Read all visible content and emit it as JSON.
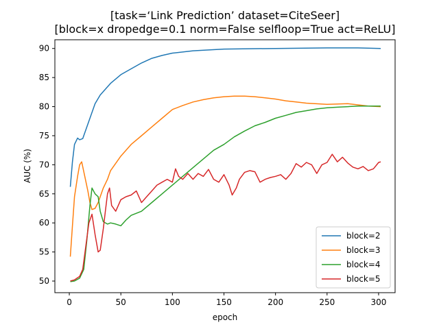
{
  "chart_data": {
    "type": "line",
    "title_line1": "[task=‘Link Prediction’ dataset=CiteSeer]",
    "title_line2": "[block=x dropedge=0.1 norm=False selfloop=True act=ReLU]",
    "xlabel": "epoch",
    "ylabel": "AUC (%)",
    "xlim": [
      -14,
      316
    ],
    "ylim": [
      48,
      91.5
    ],
    "xticks": [
      0,
      50,
      100,
      150,
      200,
      250,
      300
    ],
    "yticks": [
      50,
      55,
      60,
      65,
      70,
      75,
      80,
      85,
      90
    ],
    "grid": false,
    "legend_position": "lower-right",
    "series": [
      {
        "name": "block=2",
        "color": "#1f77b4",
        "points": [
          [
            1,
            66.2
          ],
          [
            3,
            70.5
          ],
          [
            5,
            73.5
          ],
          [
            8,
            74.6
          ],
          [
            10,
            74.3
          ],
          [
            13,
            74.5
          ],
          [
            17,
            76.5
          ],
          [
            20,
            78
          ],
          [
            25,
            80.5
          ],
          [
            30,
            82
          ],
          [
            40,
            84
          ],
          [
            50,
            85.5
          ],
          [
            60,
            86.5
          ],
          [
            70,
            87.5
          ],
          [
            80,
            88.3
          ],
          [
            90,
            88.8
          ],
          [
            100,
            89.2
          ],
          [
            120,
            89.6
          ],
          [
            150,
            89.9
          ],
          [
            200,
            90
          ],
          [
            250,
            90.1
          ],
          [
            280,
            90.1
          ],
          [
            302,
            90
          ]
        ]
      },
      {
        "name": "block=3",
        "color": "#ff7f0e",
        "points": [
          [
            1,
            54.2
          ],
          [
            3,
            59.5
          ],
          [
            5,
            64.5
          ],
          [
            8,
            68
          ],
          [
            10,
            70
          ],
          [
            12,
            70.5
          ],
          [
            15,
            68
          ],
          [
            18,
            65.5
          ],
          [
            20,
            63.5
          ],
          [
            22,
            62.3
          ],
          [
            25,
            62.5
          ],
          [
            28,
            63.5
          ],
          [
            30,
            64.5
          ],
          [
            33,
            66
          ],
          [
            37,
            67.5
          ],
          [
            40,
            69
          ],
          [
            50,
            71.5
          ],
          [
            60,
            73.5
          ],
          [
            70,
            75
          ],
          [
            80,
            76.5
          ],
          [
            90,
            78
          ],
          [
            100,
            79.5
          ],
          [
            110,
            80.2
          ],
          [
            120,
            80.8
          ],
          [
            130,
            81.2
          ],
          [
            140,
            81.5
          ],
          [
            150,
            81.7
          ],
          [
            160,
            81.8
          ],
          [
            170,
            81.8
          ],
          [
            180,
            81.7
          ],
          [
            190,
            81.5
          ],
          [
            200,
            81.3
          ],
          [
            210,
            81
          ],
          [
            220,
            80.8
          ],
          [
            230,
            80.6
          ],
          [
            250,
            80.4
          ],
          [
            270,
            80.5
          ],
          [
            290,
            80.1
          ],
          [
            302,
            80
          ]
        ]
      },
      {
        "name": "block=4",
        "color": "#2ca02c",
        "points": [
          [
            1,
            49.9
          ],
          [
            5,
            50
          ],
          [
            10,
            50.5
          ],
          [
            14,
            52
          ],
          [
            17,
            57
          ],
          [
            20,
            63
          ],
          [
            22,
            66
          ],
          [
            25,
            65
          ],
          [
            28,
            64.5
          ],
          [
            30,
            62
          ],
          [
            33,
            60.2
          ],
          [
            37,
            59.8
          ],
          [
            40,
            60
          ],
          [
            45,
            59.8
          ],
          [
            50,
            59.5
          ],
          [
            55,
            60.5
          ],
          [
            60,
            61.3
          ],
          [
            70,
            62
          ],
          [
            80,
            63.5
          ],
          [
            90,
            65
          ],
          [
            100,
            66.5
          ],
          [
            110,
            68
          ],
          [
            120,
            69.5
          ],
          [
            130,
            71
          ],
          [
            140,
            72.5
          ],
          [
            150,
            73.5
          ],
          [
            160,
            74.8
          ],
          [
            170,
            75.8
          ],
          [
            180,
            76.7
          ],
          [
            190,
            77.3
          ],
          [
            200,
            78
          ],
          [
            210,
            78.5
          ],
          [
            220,
            79
          ],
          [
            230,
            79.3
          ],
          [
            240,
            79.6
          ],
          [
            250,
            79.8
          ],
          [
            260,
            79.9
          ],
          [
            270,
            80
          ],
          [
            280,
            80.1
          ],
          [
            290,
            80.1
          ],
          [
            302,
            80.1
          ]
        ]
      },
      {
        "name": "block=5",
        "color": "#d62728",
        "points": [
          [
            1,
            50
          ],
          [
            5,
            50.2
          ],
          [
            10,
            50.8
          ],
          [
            13,
            52
          ],
          [
            16,
            56
          ],
          [
            19,
            60
          ],
          [
            22,
            61.5
          ],
          [
            25,
            58
          ],
          [
            28,
            55
          ],
          [
            30,
            55.3
          ],
          [
            33,
            59
          ],
          [
            35,
            62
          ],
          [
            37,
            65
          ],
          [
            39,
            66
          ],
          [
            41,
            63
          ],
          [
            45,
            62
          ],
          [
            50,
            64
          ],
          [
            55,
            64.5
          ],
          [
            60,
            64.8
          ],
          [
            65,
            65.5
          ],
          [
            70,
            63.5
          ],
          [
            75,
            64.5
          ],
          [
            80,
            65.5
          ],
          [
            85,
            66.5
          ],
          [
            90,
            67
          ],
          [
            95,
            67.5
          ],
          [
            100,
            67
          ],
          [
            103,
            69.3
          ],
          [
            106,
            68
          ],
          [
            110,
            67.5
          ],
          [
            115,
            68.5
          ],
          [
            120,
            67.5
          ],
          [
            125,
            68.5
          ],
          [
            130,
            68
          ],
          [
            135,
            69.2
          ],
          [
            140,
            67.5
          ],
          [
            145,
            67
          ],
          [
            150,
            68.3
          ],
          [
            155,
            66.5
          ],
          [
            158,
            64.8
          ],
          [
            162,
            66
          ],
          [
            165,
            67.5
          ],
          [
            170,
            68.7
          ],
          [
            175,
            69
          ],
          [
            180,
            68.8
          ],
          [
            185,
            67
          ],
          [
            190,
            67.5
          ],
          [
            195,
            67.8
          ],
          [
            200,
            68
          ],
          [
            205,
            68.3
          ],
          [
            210,
            67.5
          ],
          [
            215,
            68.5
          ],
          [
            220,
            70.2
          ],
          [
            225,
            69.6
          ],
          [
            230,
            70.4
          ],
          [
            235,
            70
          ],
          [
            240,
            68.5
          ],
          [
            245,
            70
          ],
          [
            250,
            70.4
          ],
          [
            255,
            71.8
          ],
          [
            260,
            70.5
          ],
          [
            265,
            71.3
          ],
          [
            270,
            70.3
          ],
          [
            275,
            69.6
          ],
          [
            280,
            69.3
          ],
          [
            285,
            69.7
          ],
          [
            290,
            69
          ],
          [
            295,
            69.3
          ],
          [
            300,
            70.4
          ],
          [
            302,
            70.5
          ]
        ]
      }
    ]
  }
}
